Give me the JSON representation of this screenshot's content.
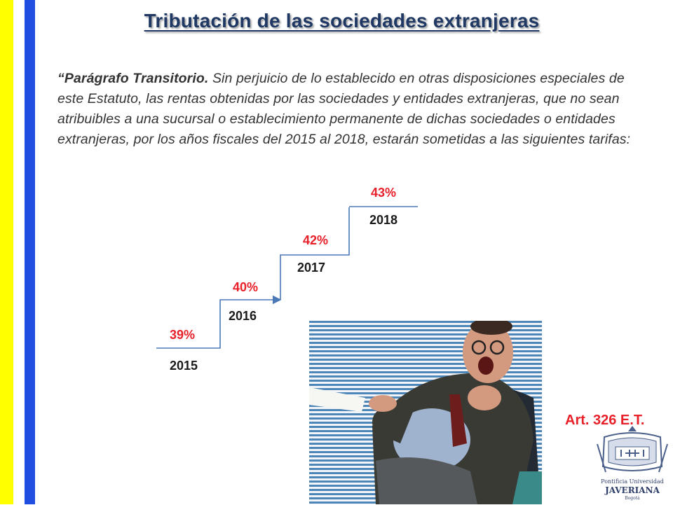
{
  "slide": {
    "title": "Tributación de las sociedades extranjeras",
    "paragraph_lead": "“Parágrafo Transitorio.",
    "paragraph_text": " Sin perjuicio de lo establecido en otras disposiciones especiales de este Estatuto, las rentas obtenidas por las sociedades y entidades extranjeras, que no sean atribuibles a una sucursal o establecimiento permanente de dichas sociedades o entidades extranjeras, por los años fiscales del 2015 al 2018, estarán sometidas a las siguientes tarifas:",
    "steps": [
      {
        "rate": "39%",
        "year": "2015"
      },
      {
        "rate": "40%",
        "year": "2016"
      },
      {
        "rate": "42%",
        "year": "2017"
      },
      {
        "rate": "43%",
        "year": "2018"
      }
    ],
    "article_ref": "Art. 326 E.T.",
    "logo": {
      "line1": "Pontificia Universidad",
      "line2": "JAVERIANA",
      "line3": "Bogotá"
    }
  },
  "colors": {
    "title": "#1f3864",
    "rate": "#e8202a",
    "stair_line": "#4a79b8",
    "stripe_yellow": "#ffff00",
    "stripe_blue": "#1f4ee0"
  }
}
